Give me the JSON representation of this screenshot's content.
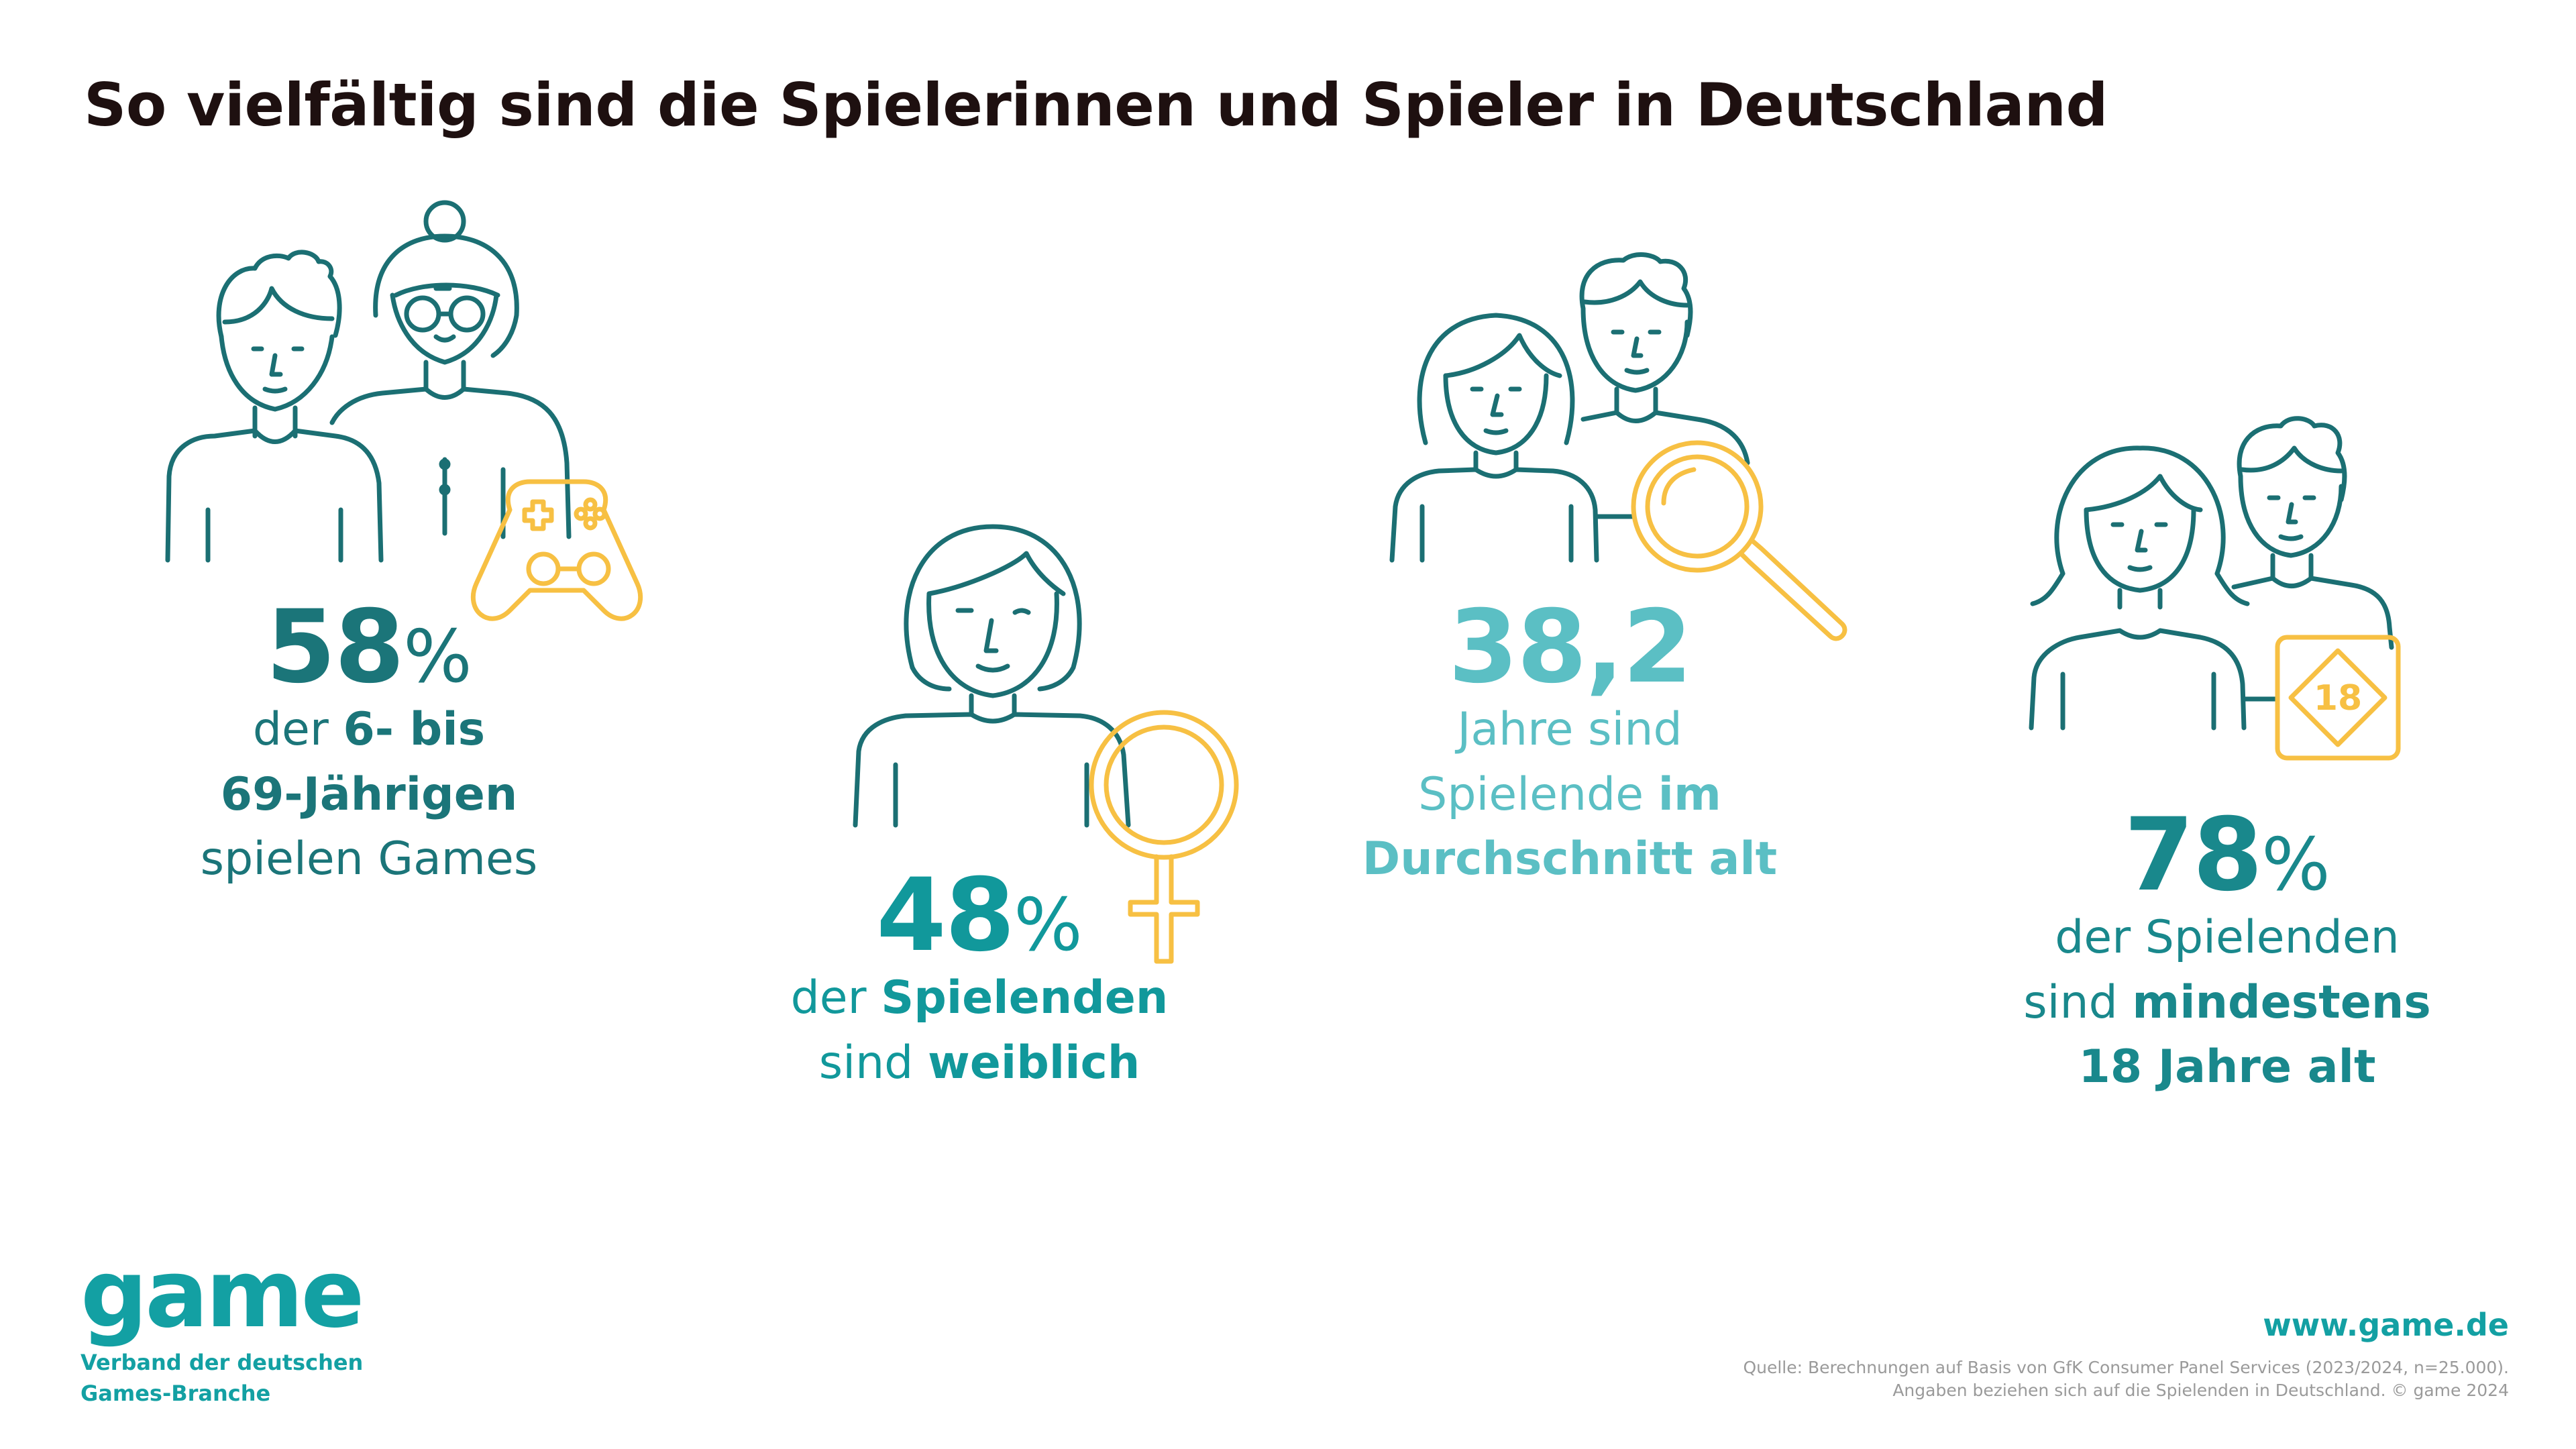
{
  "title": "So vielfältig sind die Spielerinnen und Spieler in Deutschland",
  "colors": {
    "dark_teal": "#1b7579",
    "teal": "#11989b",
    "light_teal": "#5bbfc4",
    "yellow": "#f7c043"
  },
  "stats": [
    {
      "value": "58",
      "unit": "%",
      "line1_a": "der ",
      "line1_b": "6- bis",
      "line2": "69-Jährigen",
      "line3": "spielen Games",
      "icon": "gamepad-icon"
    },
    {
      "value": "48",
      "unit": "%",
      "line1_a": "der ",
      "line1_b": "Spielenden",
      "line2_a": "sind ",
      "line2_b": "weiblich",
      "icon": "female-symbol-icon"
    },
    {
      "value": "38,2",
      "line1": "Jahre sind",
      "line2_a": "Spielende ",
      "line2_b": "im",
      "line3": "Durchschnitt alt",
      "icon": "magnifier-icon"
    },
    {
      "value": "78",
      "unit": "%",
      "line1": "der Spielenden",
      "line2_a": "sind ",
      "line2_b": "mindestens",
      "line3": "18 Jahre alt",
      "icon": "age-18-badge-icon",
      "badge": "18"
    }
  ],
  "logo": {
    "word": "game",
    "sub1": "Verband der deutschen",
    "sub2": "Games-Branche"
  },
  "website": "www.game.de",
  "source1": "Quelle: Berechnungen auf Basis von GfK Consumer Panel Services (2023/2024, n=25.000).",
  "source2": "Angaben beziehen sich auf die Spielenden in Deutschland. © game 2024"
}
